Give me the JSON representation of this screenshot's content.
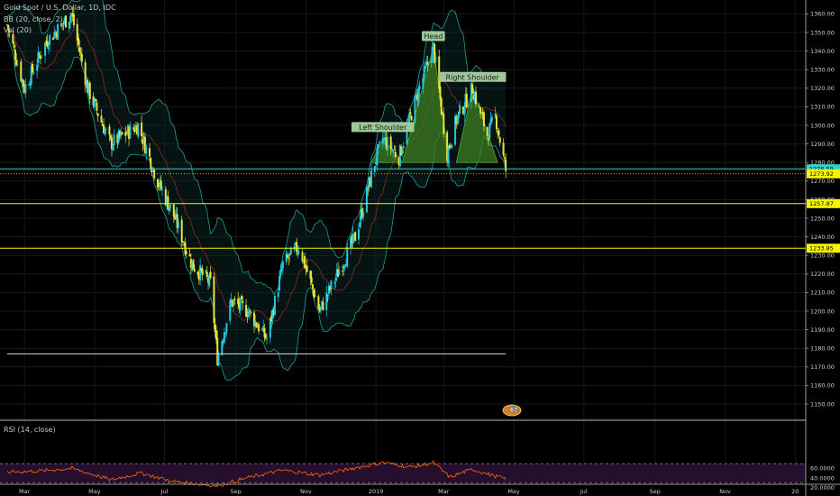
{
  "header": {
    "symbol_line": "Gold Spot / U.S. Dollar, 1D, IDC",
    "bb_line": "BB (20, close, 2)",
    "vol_line": "Vol (20)",
    "rsi_line": "RSI (14, close)"
  },
  "colors": {
    "background": "#000000",
    "candle_up": "#26c6da",
    "candle_down": "#e8e33c",
    "bb_band": "#1f9e95",
    "bb_basis": "#8a2d22",
    "hs_fill": "#3e7d22",
    "resistance_cyan": "#2fd4c8",
    "level_yellow": "#f5f500",
    "rsi_line": "#ff6a00",
    "rsi_band": "#2a0f33"
  },
  "chart_data": [
    {
      "type": "candlestick",
      "instrument": "Gold Spot / U.S. Dollar",
      "timeframe": "1D",
      "ylim": [
        1150,
        1375
      ],
      "y_ticks": [
        1150,
        1160,
        1170,
        1180,
        1190,
        1200,
        1210,
        1220,
        1230,
        1240,
        1250,
        1260,
        1270,
        1280,
        1290,
        1300,
        1310,
        1320,
        1330,
        1340,
        1350,
        1360,
        1370
      ],
      "x_labels": [
        "Mar",
        "May",
        "Jul",
        "Sep",
        "Nov",
        "2019",
        "Mar",
        "May",
        "Jul",
        "Sep",
        "Nov",
        "20"
      ],
      "close_path": [
        {
          "x": "2018-02-14",
          "y": 1354
        },
        {
          "x": "2018-03-01",
          "y": 1320
        },
        {
          "x": "2018-03-20",
          "y": 1345
        },
        {
          "x": "2018-04-11",
          "y": 1360
        },
        {
          "x": "2018-04-25",
          "y": 1320
        },
        {
          "x": "2018-05-15",
          "y": 1290
        },
        {
          "x": "2018-06-08",
          "y": 1300
        },
        {
          "x": "2018-06-25",
          "y": 1270
        },
        {
          "x": "2018-07-10",
          "y": 1250
        },
        {
          "x": "2018-07-25",
          "y": 1225
        },
        {
          "x": "2018-08-10",
          "y": 1215
        },
        {
          "x": "2018-08-16",
          "y": 1175
        },
        {
          "x": "2018-08-28",
          "y": 1205
        },
        {
          "x": "2018-09-12",
          "y": 1200
        },
        {
          "x": "2018-09-28",
          "y": 1185
        },
        {
          "x": "2018-10-12",
          "y": 1225
        },
        {
          "x": "2018-10-26",
          "y": 1235
        },
        {
          "x": "2018-11-13",
          "y": 1200
        },
        {
          "x": "2018-11-30",
          "y": 1222
        },
        {
          "x": "2018-12-14",
          "y": 1240
        },
        {
          "x": "2018-12-31",
          "y": 1280
        },
        {
          "x": "2019-01-07",
          "y": 1293
        },
        {
          "x": "2019-01-21",
          "y": 1283
        },
        {
          "x": "2019-02-05",
          "y": 1315
        },
        {
          "x": "2019-02-20",
          "y": 1342
        },
        {
          "x": "2019-03-04",
          "y": 1285
        },
        {
          "x": "2019-03-12",
          "y": 1303
        },
        {
          "x": "2019-03-26",
          "y": 1320
        },
        {
          "x": "2019-04-08",
          "y": 1295
        },
        {
          "x": "2019-04-15",
          "y": 1305
        },
        {
          "x": "2019-04-24",
          "y": 1276
        }
      ],
      "bollinger_bands": {
        "period": 20,
        "source": "close",
        "mult": 2
      },
      "horizontal_lines": [
        {
          "label": "1276.59",
          "price": 1276.59
        },
        {
          "label": "1273.92",
          "price": 1273.92
        },
        {
          "label": "1257.87",
          "price": 1257.87
        },
        {
          "label": "1233.85",
          "price": 1233.85
        },
        {
          "price": 1177,
          "from": "2018-02-14",
          "to": "2019-04-24"
        }
      ],
      "annotations": [
        {
          "text": "Left Shoulder",
          "x": "2019-01-07",
          "y": 1293
        },
        {
          "text": "Head",
          "x": "2019-02-20",
          "y": 1342
        },
        {
          "text": "Right Shoulder",
          "x": "2019-03-26",
          "y": 1320
        }
      ],
      "pattern": "head-and-shoulders"
    },
    {
      "type": "line",
      "title": "RSI (14, close)",
      "ylim": [
        21,
        76
      ],
      "y_ticks": [
        {
          "label": "60.0000",
          "value": 60
        },
        {
          "label": "40.0000",
          "value": 40
        },
        {
          "label": "20.0000",
          "value": 20
        }
      ],
      "band": [
        30,
        70
      ],
      "rsi_path": [
        {
          "x": "2018-02-14",
          "y": 52
        },
        {
          "x": "2018-03-15",
          "y": 55
        },
        {
          "x": "2018-04-12",
          "y": 60
        },
        {
          "x": "2018-05-15",
          "y": 36
        },
        {
          "x": "2018-06-10",
          "y": 50
        },
        {
          "x": "2018-07-10",
          "y": 32
        },
        {
          "x": "2018-08-16",
          "y": 23
        },
        {
          "x": "2018-09-10",
          "y": 40
        },
        {
          "x": "2018-10-12",
          "y": 56
        },
        {
          "x": "2018-11-13",
          "y": 46
        },
        {
          "x": "2018-12-14",
          "y": 61
        },
        {
          "x": "2019-01-07",
          "y": 72
        },
        {
          "x": "2019-02-01",
          "y": 63
        },
        {
          "x": "2019-02-20",
          "y": 72
        },
        {
          "x": "2019-03-06",
          "y": 42
        },
        {
          "x": "2019-03-26",
          "y": 58
        },
        {
          "x": "2019-04-10",
          "y": 47
        },
        {
          "x": "2019-04-24",
          "y": 38
        }
      ]
    }
  ],
  "badge": {
    "text": "67"
  }
}
